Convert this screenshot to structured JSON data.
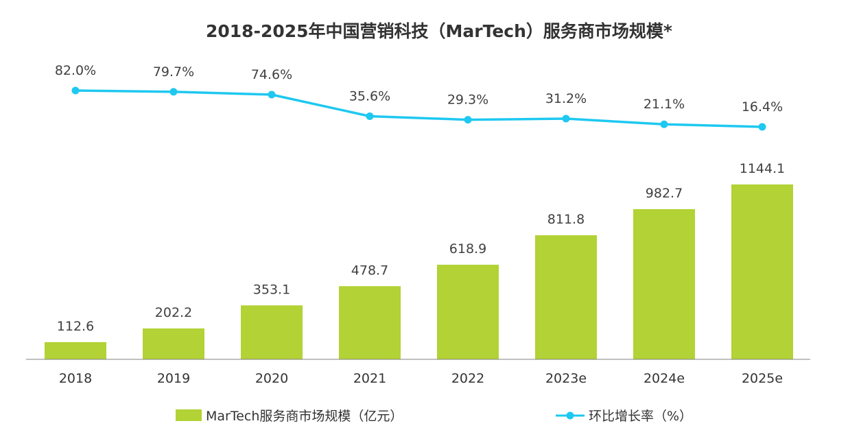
{
  "chart_data": {
    "type": "bar",
    "title": "2018-2025年中国营销科技（MarTech）服务商市场规模*",
    "categories": [
      "2018",
      "2019",
      "2020",
      "2021",
      "2022",
      "2023e",
      "2024e",
      "2025e"
    ],
    "series": [
      {
        "name": "MarTech服务商市场规模（亿元）",
        "kind": "bar",
        "values": [
          112.6,
          202.2,
          353.1,
          478.7,
          618.9,
          811.8,
          982.7,
          1144.1
        ],
        "labels": [
          "112.6",
          "202.2",
          "353.1",
          "478.7",
          "618.9",
          "811.8",
          "982.7",
          "1144.1"
        ],
        "color": "#b2d235"
      },
      {
        "name": "环比增长率（%）",
        "kind": "line",
        "values": [
          82.0,
          79.7,
          74.6,
          35.6,
          29.3,
          31.2,
          21.1,
          16.4
        ],
        "labels": [
          "82.0%",
          "79.7%",
          "74.6%",
          "35.6%",
          "29.3%",
          "31.2%",
          "21.1%",
          "16.4%"
        ],
        "color": "#1ec8f0"
      }
    ],
    "xlabel": "",
    "ylabel": "",
    "ylim_bar": [
      0,
      1144.1
    ],
    "ylim_line": [
      16.4,
      82.0
    ],
    "grid": false,
    "legend_position": "bottom"
  },
  "colors": {
    "bar": "#b2d235",
    "line": "#1ec8f0",
    "axis": "#808080"
  }
}
